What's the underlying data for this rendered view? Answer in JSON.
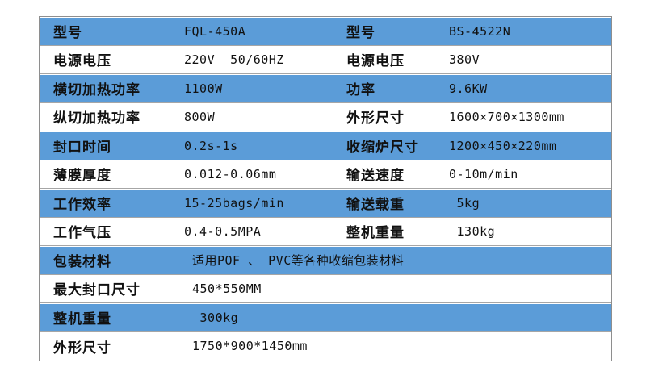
{
  "colors": {
    "row_accent_blue": "#5b9cd8",
    "row_white": "#ffffff",
    "border_gray": "#a6a6a6",
    "text": "#111111"
  },
  "table": {
    "description": "machine-specification-comparison-table",
    "left_model": "FQL-450A",
    "right_model": "BS-4522N",
    "rows": [
      {
        "left_label": "型号",
        "left_value": "FQL-450A",
        "right_label": "型号",
        "right_value": "BS-4522N"
      },
      {
        "left_label": "电源电压",
        "left_value": "220V  50/60HZ",
        "right_label": "电源电压",
        "right_value": "380V"
      },
      {
        "left_label": "横切加热功率",
        "left_value": "1100W",
        "right_label": "功率",
        "right_value": "9.6KW"
      },
      {
        "left_label": "纵切加热功率",
        "left_value": "800W",
        "right_label": "外形尺寸",
        "right_value": "1600×700×1300mm"
      },
      {
        "left_label": "封口时间",
        "left_value": "0.2s-1s",
        "right_label": "收缩炉尺寸",
        "right_value": "1200×450×220mm"
      },
      {
        "left_label": "薄膜厚度",
        "left_value": "0.012-0.06mm",
        "right_label": "输送速度",
        "right_value": "0-10m/min"
      },
      {
        "left_label": "工作效率",
        "left_value": "15-25bags/min",
        "right_label": "输送载重",
        "right_value": " 5kg"
      },
      {
        "left_label": "工作气压",
        "left_value": "0.4-0.5MPA",
        "right_label": "整机重量",
        "right_value": " 130kg"
      },
      {
        "left_label": "包装材料",
        "span_value": "适用POF 、 PVC等各种收缩包装材料"
      },
      {
        "left_label": "最大封口尺寸",
        "span_value": "450*550MM"
      },
      {
        "left_label": "整机重量",
        "span_value": " 300kg"
      },
      {
        "left_label": "外形尺寸",
        "span_value": "1750*900*1450mm"
      }
    ]
  }
}
